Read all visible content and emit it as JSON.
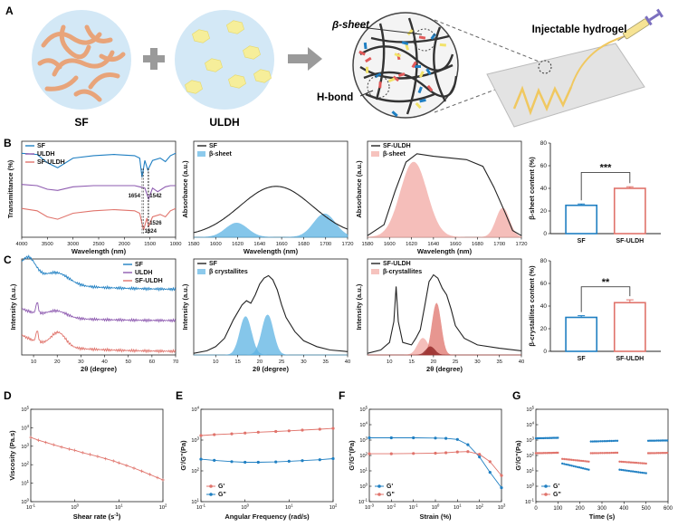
{
  "figure": {
    "panel_letters": [
      "A",
      "B",
      "C",
      "D",
      "E",
      "F",
      "G"
    ]
  },
  "panel_a": {
    "sf_label": "SF",
    "uldh_label": "ULDH",
    "beta_sheet_label": "β-sheet",
    "hbond_label": "H-bond",
    "hydrogel_label": "Injectable hydrogel",
    "colors": {
      "sf_fiber": "#e8a47a",
      "circle_bg": "#d3e8f6",
      "uldh_sheet": "#f6ee9a",
      "network_dark": "#333333",
      "network_blue": "#1f7fc2",
      "network_red": "#e15a5a",
      "network_yellow": "#f2e36b"
    }
  },
  "chart_data": [
    {
      "id": "B1",
      "type": "line",
      "xlabel": "Wavelength (nm)",
      "ylabel": "Transmittance (%)",
      "xlim": [
        4000,
        1000
      ],
      "xticks": [
        4000,
        3500,
        3000,
        2500,
        2000,
        1500,
        1000
      ],
      "legend": [
        "SF",
        "ULDH",
        "SF-ULDH"
      ],
      "legend_position": "top-left",
      "annotations": [
        "1654",
        "1542",
        "1526",
        "1624"
      ],
      "series": [
        {
          "name": "SF",
          "color": "#1f7fc2",
          "x": [
            4000,
            3700,
            3500,
            3300,
            3000,
            2600,
            2200,
            1800,
            1700,
            1654,
            1600,
            1542,
            1450,
            1300,
            1200,
            1100,
            1000
          ],
          "y": [
            70,
            69,
            62,
            58,
            66,
            68,
            69,
            68,
            66,
            50,
            64,
            56,
            64,
            66,
            63,
            68,
            70
          ]
        },
        {
          "name": "ULDH",
          "color": "#8e5bb0",
          "x": [
            4000,
            3700,
            3500,
            3300,
            3000,
            2600,
            2200,
            1800,
            1700,
            1600,
            1526,
            1450,
            1350,
            1200,
            1100,
            1000
          ],
          "y": [
            44,
            43,
            40,
            39,
            42,
            43,
            43,
            43,
            42,
            41,
            32,
            41,
            38,
            42,
            43,
            43
          ]
        },
        {
          "name": "SF-ULDH",
          "color": "#e0736b",
          "x": [
            4000,
            3700,
            3500,
            3300,
            3000,
            2600,
            2200,
            1800,
            1700,
            1624,
            1560,
            1526,
            1450,
            1300,
            1200,
            1100,
            1000
          ],
          "y": [
            24,
            22,
            17,
            15,
            20,
            22,
            23,
            22,
            20,
            6,
            16,
            9,
            17,
            19,
            17,
            22,
            24
          ]
        }
      ]
    },
    {
      "id": "B2",
      "type": "area",
      "xlabel": "Wavelength (nm)",
      "ylabel": "Absorbance (a.u.)",
      "xlim": [
        1580,
        1720
      ],
      "xticks": [
        1580,
        1600,
        1620,
        1640,
        1660,
        1680,
        1700,
        1720
      ],
      "legend": [
        "SF",
        "β-sheet"
      ],
      "legend_position": "top-left",
      "envelope": {
        "name": "SF",
        "color": "#222222",
        "center": 1655,
        "width": 33,
        "height": 0.6
      },
      "fills": [
        {
          "name": "β-sheet",
          "color": "#5db3e4",
          "center": 1619,
          "width": 10,
          "height": 0.17
        },
        {
          "name": "β-sheet",
          "color": "#5db3e4",
          "center": 1699,
          "width": 10,
          "height": 0.28
        }
      ]
    },
    {
      "id": "B3",
      "type": "area",
      "xlabel": "Wavelength (nm)",
      "ylabel": "Absorbance (a.u.)",
      "xlim": [
        1580,
        1720
      ],
      "xticks": [
        1580,
        1600,
        1620,
        1640,
        1660,
        1680,
        1700,
        1720
      ],
      "legend": [
        "SF-ULDH",
        "β-sheet"
      ],
      "legend_position": "top-left",
      "envelope_points": {
        "color": "#222222",
        "x": [
          1580,
          1595,
          1605,
          1615,
          1625,
          1640,
          1655,
          1670,
          1685,
          1695,
          1705,
          1712,
          1720
        ],
        "y": [
          0.02,
          0.15,
          0.55,
          0.9,
          1.0,
          0.97,
          0.95,
          0.93,
          0.85,
          0.6,
          0.3,
          0.08,
          0.02
        ]
      },
      "fills": [
        {
          "name": "β-sheet",
          "color": "#f2a9a3",
          "center": 1622,
          "width": 12,
          "height": 0.9
        },
        {
          "name": "β-sheet",
          "color": "#f2a9a3",
          "center": 1703,
          "width": 6,
          "height": 0.35
        }
      ]
    },
    {
      "id": "B4",
      "type": "bar",
      "ylabel": "β-sheet content (%)",
      "ylim": [
        0,
        80
      ],
      "yticks": [
        0,
        20,
        40,
        60,
        80
      ],
      "categories": [
        "SF",
        "SF-ULDH"
      ],
      "values": [
        25,
        40
      ],
      "errors": [
        1.2,
        1.4
      ],
      "colors": [
        "#1f7fc2",
        "#e0736b"
      ],
      "significance": "***"
    },
    {
      "id": "C1",
      "type": "line",
      "xlabel": "2θ (degree)",
      "ylabel": "Intensity (a.u.)",
      "xlim": [
        5,
        70
      ],
      "xticks": [
        10,
        20,
        30,
        40,
        50,
        60,
        70
      ],
      "legend": [
        "SF",
        "ULDH",
        "SF-ULDH"
      ],
      "legend_position": "top-right",
      "series": [
        {
          "name": "SF",
          "color": "#1f7fc2",
          "offset": 2.0,
          "peaks": [
            [
              8,
              0.6,
              3
            ],
            [
              20,
              0.35,
              5
            ]
          ],
          "base": 0.3,
          "decay": 0.25
        },
        {
          "name": "ULDH",
          "color": "#8e5bb0",
          "offset": 1.0,
          "peaks": [
            [
              11.5,
              0.35,
              0.5
            ],
            [
              20,
              0.2,
              4
            ]
          ],
          "base": 0.15,
          "decay": 0.25
        },
        {
          "name": "SF-ULDH",
          "color": "#e0736b",
          "offset": 0.0,
          "peaks": [
            [
              11.5,
              0.35,
              0.5
            ],
            [
              20.5,
              0.45,
              3
            ]
          ],
          "base": 0.25,
          "decay": 0.3
        }
      ]
    },
    {
      "id": "C2",
      "type": "area",
      "xlabel": "2θ (degree)",
      "ylabel": "Intensity (a.u.)",
      "xlim": [
        5,
        40
      ],
      "xticks": [
        10,
        15,
        20,
        25,
        30,
        35,
        40
      ],
      "legend": [
        "SF",
        "β crystallites"
      ],
      "legend_position": "top-left",
      "envelope_points": {
        "color": "#222222",
        "x": [
          5,
          8,
          10,
          12,
          14,
          16,
          17,
          18,
          19,
          20,
          21,
          22,
          23,
          24,
          25,
          26,
          28,
          30,
          33,
          36,
          40
        ],
        "y": [
          0.02,
          0.05,
          0.1,
          0.2,
          0.42,
          0.6,
          0.65,
          0.62,
          0.72,
          0.85,
          0.92,
          0.95,
          0.9,
          0.78,
          0.6,
          0.45,
          0.28,
          0.17,
          0.1,
          0.06,
          0.04
        ]
      },
      "fills": [
        {
          "name": "β crystallites",
          "color": "#5db3e4",
          "center": 16.8,
          "width": 1.3,
          "height": 0.46
        },
        {
          "name": "β crystallites",
          "color": "#5db3e4",
          "center": 21.8,
          "width": 1.3,
          "height": 0.48
        }
      ]
    },
    {
      "id": "C3",
      "type": "area",
      "xlabel": "2θ (degree)",
      "ylabel": "Intensity (a.u.)",
      "xlim": [
        5,
        40
      ],
      "xticks": [
        10,
        15,
        20,
        25,
        30,
        35,
        40
      ],
      "legend": [
        "SF-ULDH",
        "β-crystallites"
      ],
      "legend_position": "top-left",
      "envelope_points": {
        "color": "#222222",
        "x": [
          5,
          8,
          10,
          11,
          11.5,
          12,
          13,
          15,
          16,
          17,
          18,
          19,
          20,
          21,
          22,
          23,
          24,
          25,
          27,
          30,
          35,
          40
        ],
        "y": [
          0.02,
          0.06,
          0.15,
          0.4,
          0.82,
          0.4,
          0.15,
          0.12,
          0.2,
          0.3,
          0.58,
          0.88,
          0.96,
          0.92,
          0.8,
          0.72,
          0.55,
          0.35,
          0.2,
          0.12,
          0.08,
          0.05
        ]
      },
      "fills": [
        {
          "name": "β-crystallites",
          "color": "#f2a9a3",
          "center": 17.6,
          "width": 1.2,
          "height": 0.2
        },
        {
          "name": "β-crystallites",
          "color": "#e0736b",
          "center": 20.7,
          "width": 1.0,
          "height": 0.62
        },
        {
          "name": "β-crystallites",
          "color": "#8b1f1f",
          "center": 19.3,
          "width": 1.0,
          "height": 0.1
        }
      ]
    },
    {
      "id": "C4",
      "type": "bar",
      "ylabel": "β-crystallites content (%)",
      "ylim": [
        0,
        80
      ],
      "yticks": [
        0,
        20,
        40,
        60,
        80
      ],
      "categories": [
        "SF",
        "SF-ULDH"
      ],
      "values": [
        30,
        43
      ],
      "errors": [
        1.5,
        2.5
      ],
      "colors": [
        "#1f7fc2",
        "#e0736b"
      ],
      "significance": "**"
    },
    {
      "id": "D",
      "type": "line",
      "log_x": true,
      "log_y": true,
      "xlabel": "Shear rate (s-1)",
      "xlabel_parts": [
        "Shear rate (s",
        "-1",
        ")"
      ],
      "ylabel": "Viscosity (Pa.s)",
      "xlim": [
        0.1,
        100
      ],
      "ylim": [
        1,
        100000
      ],
      "series": [
        {
          "name": "viscosity",
          "color": "#e0736b",
          "x": [
            0.1,
            0.15,
            0.22,
            0.33,
            0.5,
            0.75,
            1,
            1.5,
            2.2,
            3.3,
            5,
            7.5,
            10,
            15,
            22,
            33,
            50,
            75,
            100
          ],
          "y": [
            3000,
            2100,
            1600,
            1200,
            900,
            700,
            600,
            450,
            360,
            280,
            210,
            160,
            125,
            90,
            65,
            45,
            30,
            20,
            15
          ]
        }
      ]
    },
    {
      "id": "E",
      "type": "line",
      "log_x": true,
      "log_y": true,
      "xlabel": "Angular Frequency (rad/s)",
      "ylabel": "G'/G\"(Pa)",
      "xlim": [
        0.1,
        100
      ],
      "ylim": [
        10,
        10000
      ],
      "legend": [
        "G'",
        "G\""
      ],
      "legend_position": "bottom-left",
      "series": [
        {
          "name": "G'",
          "color": "#e0736b",
          "x": [
            0.1,
            0.2,
            0.5,
            1,
            2,
            5,
            10,
            20,
            50,
            100
          ],
          "y": [
            1400,
            1500,
            1600,
            1700,
            1800,
            1900,
            2000,
            2100,
            2250,
            2400
          ]
        },
        {
          "name": "G\"",
          "color": "#1f7fc2",
          "x": [
            0.1,
            0.2,
            0.5,
            1,
            2,
            5,
            10,
            20,
            50,
            100
          ],
          "y": [
            240,
            220,
            200,
            190,
            190,
            195,
            205,
            215,
            230,
            250
          ]
        }
      ]
    },
    {
      "id": "F",
      "type": "line",
      "log_x": true,
      "log_y": true,
      "xlabel": "Strain (%)",
      "ylabel": "G'/G\"(Pa)",
      "xlim": [
        0.001,
        1000
      ],
      "ylim": [
        0.1,
        100000
      ],
      "legend": [
        "G'",
        "G\""
      ],
      "legend_position": "bottom-left",
      "series": [
        {
          "name": "G'",
          "color": "#1f7fc2",
          "x": [
            0.001,
            0.01,
            0.1,
            1,
            3,
            10,
            30,
            100,
            300,
            1000
          ],
          "y": [
            1400,
            1400,
            1400,
            1350,
            1300,
            1100,
            500,
            80,
            8,
            0.8
          ]
        },
        {
          "name": "G\"",
          "color": "#e0736b",
          "x": [
            0.001,
            0.01,
            0.1,
            1,
            3,
            10,
            30,
            100,
            300,
            1000
          ],
          "y": [
            130,
            130,
            135,
            140,
            150,
            170,
            180,
            120,
            40,
            5
          ]
        }
      ]
    },
    {
      "id": "G",
      "type": "line",
      "log_y": true,
      "xlabel": "Time (s)",
      "ylabel": "G'/G\"(Pa)",
      "xlim": [
        0,
        600
      ],
      "ylim": [
        0.1,
        100000
      ],
      "xticks": [
        0,
        100,
        200,
        300,
        400,
        500,
        600
      ],
      "legend": [
        "G'",
        "G\""
      ],
      "legend_position": "bottom-left",
      "segments": [
        {
          "x": [
            0,
            100
          ],
          "gp": [
            1300,
            1400
          ],
          "gpp": [
            140,
            150
          ]
        },
        {
          "x": [
            120,
            240
          ],
          "gp": [
            30,
            12
          ],
          "gpp": [
            60,
            40
          ]
        },
        {
          "x": [
            250,
            370
          ],
          "gp": [
            800,
            900
          ],
          "gpp": [
            140,
            150
          ]
        },
        {
          "x": [
            380,
            500
          ],
          "gp": [
            12,
            7
          ],
          "gpp": [
            40,
            30
          ]
        },
        {
          "x": [
            510,
            620
          ],
          "gp": [
            900,
            950
          ],
          "gpp": [
            140,
            150
          ]
        }
      ],
      "series_colors": {
        "G'": "#1f7fc2",
        "G\"": "#e0736b"
      }
    }
  ]
}
